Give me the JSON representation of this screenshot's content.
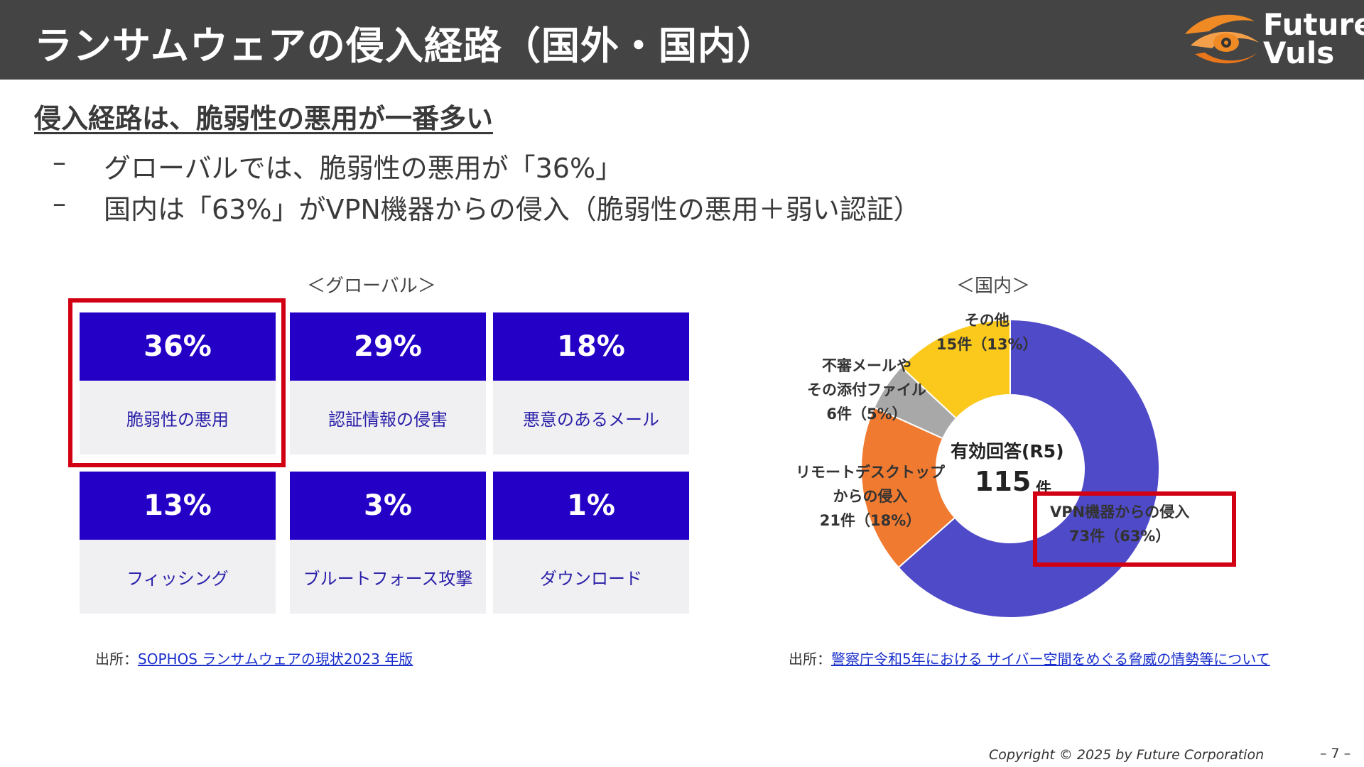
{
  "header": {
    "title": "ランサムウェアの侵入経路（国外・国内）",
    "logo": {
      "line1": "Future",
      "line2": "Vuls",
      "colors": {
        "orange": "#f08a24",
        "dark": "#444444"
      }
    }
  },
  "subheading": "侵入経路は、脆弱性の悪用が一番多い",
  "bullets": [
    {
      "dash": "–",
      "text": "グローバルでは、脆弱性の悪用が「36%」"
    },
    {
      "dash": "–",
      "text": "国内は「63%」がVPN機器からの侵入（脆弱性の悪用＋弱い認証）"
    }
  ],
  "global": {
    "label": "＜グローバル＞",
    "cards": [
      {
        "value": "36%",
        "label": "脆弱性の悪用",
        "highlighted": true
      },
      {
        "value": "29%",
        "label": "認証情報の侵害"
      },
      {
        "value": "18%",
        "label": "悪意のあるメール"
      },
      {
        "value": "13%",
        "label": "フィッシング"
      },
      {
        "value": "3%",
        "label": "ブルートフォース攻撃"
      },
      {
        "value": "1%",
        "label": "ダウンロード"
      }
    ],
    "source_prefix": "出所：",
    "source_link": "SOPHOS ランサムウェアの現状2023 年版"
  },
  "domestic": {
    "label": "＜国内＞",
    "center_line1": "有効回答(R5)",
    "center_value": "115",
    "center_unit": "件",
    "labels": {
      "vpn_1": "VPN機器からの侵入",
      "vpn_2": "73件（63%）",
      "remote_1": "リモートデスクトップ",
      "remote_2": "からの侵入",
      "remote_3": "21件（18%）",
      "mail_1": "不審メールや",
      "mail_2": "その添付ファイル",
      "mail_3": "6件（5%）",
      "other_1": "その他",
      "other_2": "15件（13%）"
    },
    "source_prefix": "出所：",
    "source_link": "警察庁令和5年における サイバー空間をめぐる脅威の情勢等について"
  },
  "chart_data": {
    "type": "pie",
    "categories": [
      "VPN機器からの侵入",
      "リモートデスクトップからの侵入",
      "不審メールやその添付ファイル",
      "その他"
    ],
    "values": [
      73,
      21,
      6,
      15
    ],
    "colors": [
      "#4f4ac8",
      "#f07a30",
      "#a8a8a8",
      "#fbc91c"
    ]
  },
  "footer": {
    "copyright": "Copyright © 2025 by Future Corporation",
    "page": "– 7 –"
  }
}
